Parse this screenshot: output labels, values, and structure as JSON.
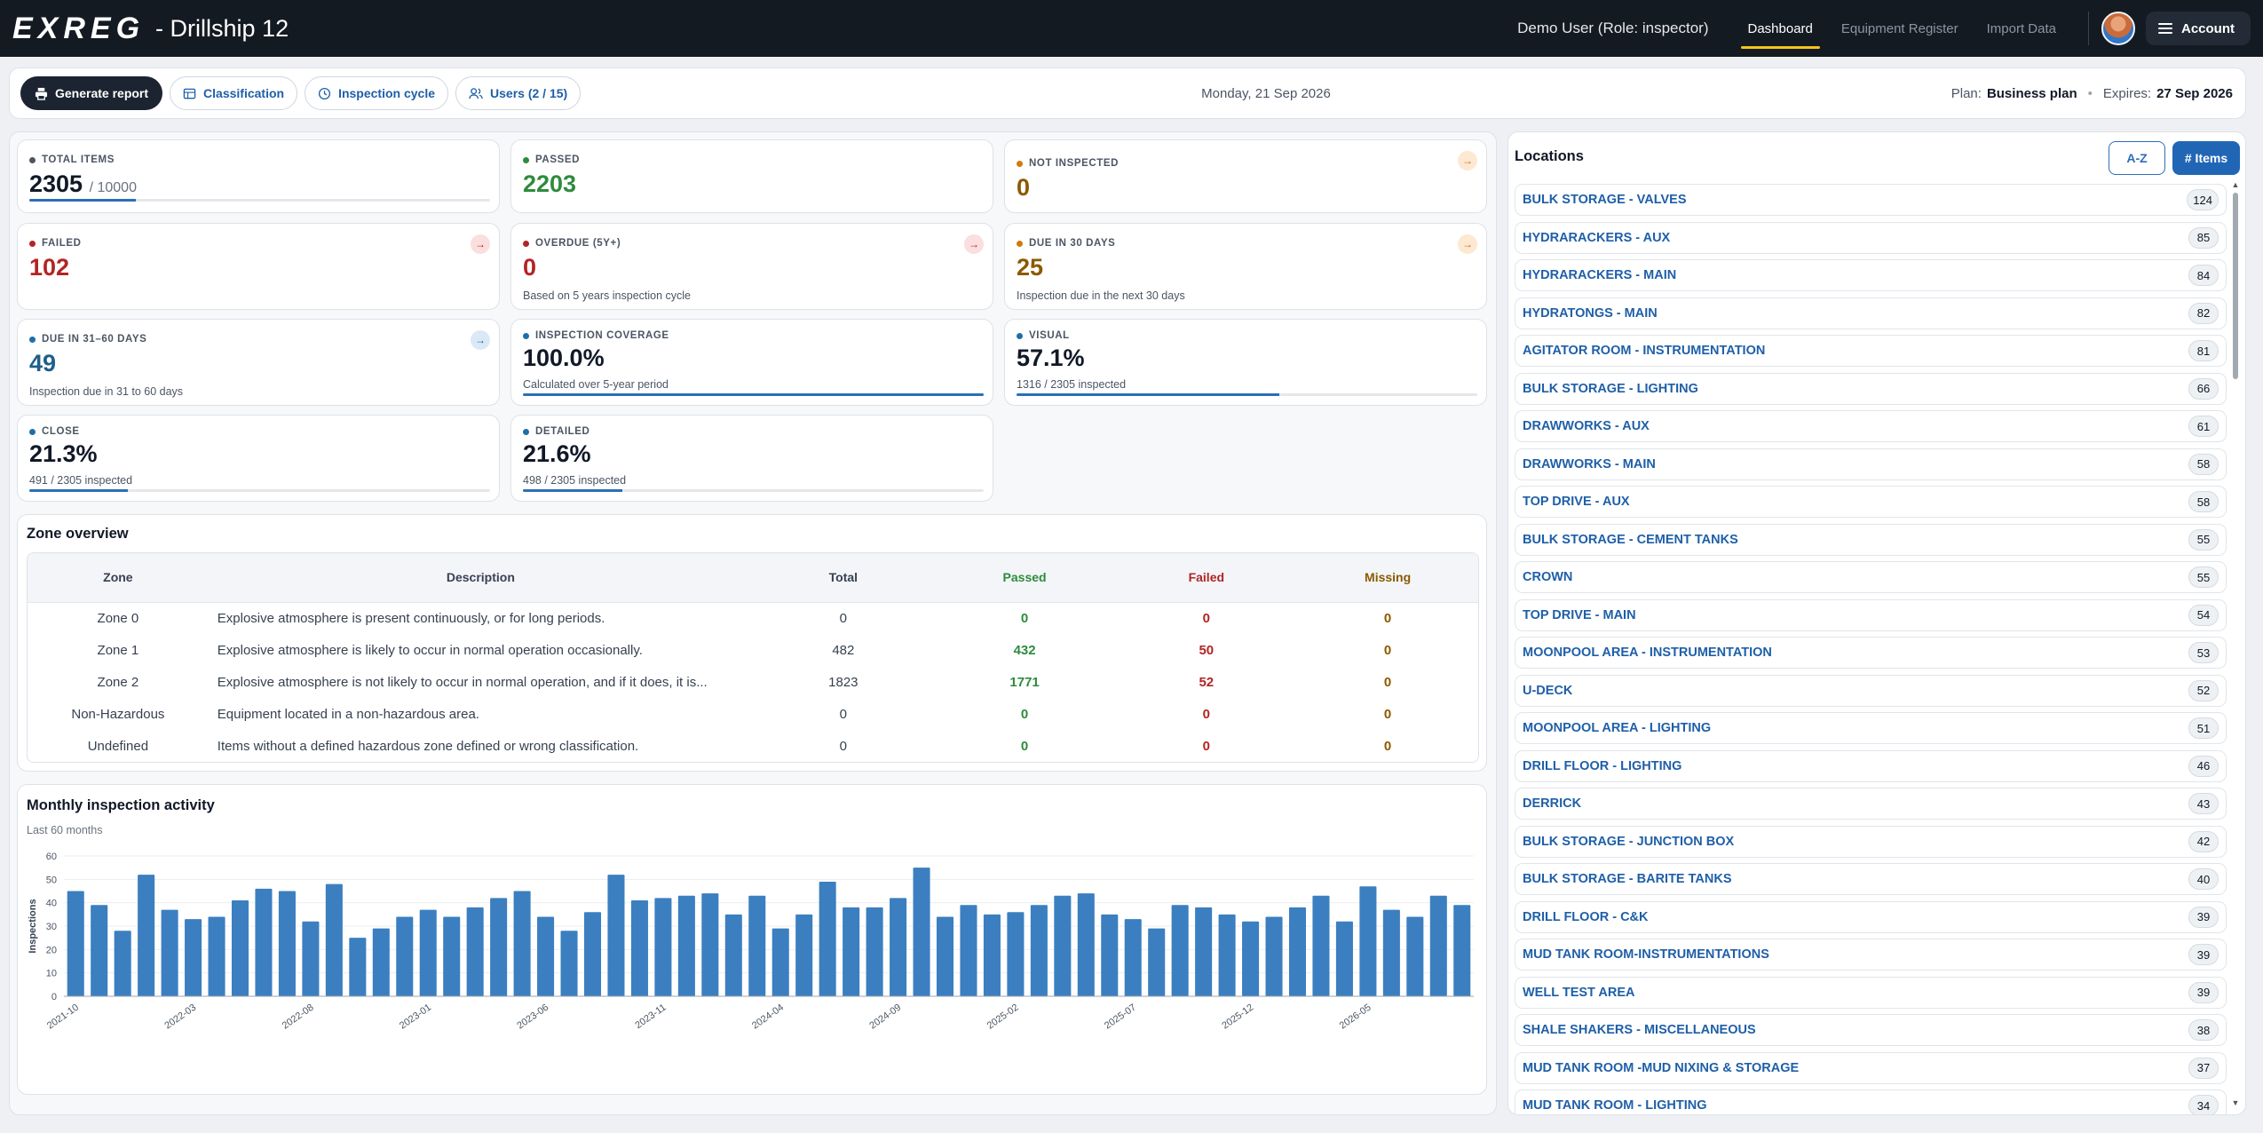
{
  "colors": {
    "pass": "#2e8b3d",
    "fail": "#b32424",
    "warn": "#8a5a00",
    "accent": "#2b6fb8",
    "neutral": "#4b5563"
  },
  "topbar": {
    "logo": "EXREG",
    "title": "- Drillship 12",
    "user": "Demo User (Role: inspector)",
    "tabs": [
      {
        "label": "Dashboard",
        "active": true
      },
      {
        "label": "Equipment Register",
        "active": false
      },
      {
        "label": "Import Data",
        "active": false
      }
    ],
    "account_label": "Account"
  },
  "toolbar": {
    "generate_report": "Generate report",
    "classification": "Classification",
    "inspection_cycle": "Inspection cycle",
    "users": "Users (2 / 15)",
    "date": "Monday, 21 Sep 2026",
    "plan_label": "Plan:",
    "plan_value": "Business plan",
    "expires_label": "Expires:",
    "expires_value": "27 Sep 2026"
  },
  "kpis": {
    "total": {
      "label": "TOTAL ITEMS",
      "value": "2305",
      "of": "/ 10000",
      "progress": 0.2305
    },
    "passed": {
      "label": "PASSED",
      "value": "2203"
    },
    "not_inspected": {
      "label": "NOT INSPECTED",
      "value": "0"
    },
    "failed": {
      "label": "FAILED",
      "value": "102"
    },
    "overdue": {
      "label": "OVERDUE (5Y+)",
      "value": "0",
      "sub": "Based on 5 years inspection cycle"
    },
    "due30": {
      "label": "DUE IN 30 DAYS",
      "value": "25",
      "sub": "Inspection due in the next 30 days"
    },
    "due60": {
      "label": "DUE IN 31–60 DAYS",
      "value": "49",
      "sub": "Inspection due in 31 to 60 days"
    },
    "coverage": {
      "label": "INSPECTION COVERAGE",
      "value": "100.0%",
      "sub": "Calculated over 5-year period",
      "progress": 1.0
    },
    "visual": {
      "label": "VISUAL",
      "value": "57.1%",
      "sub": "1316 / 2305 inspected",
      "progress": 0.571
    },
    "close": {
      "label": "CLOSE",
      "value": "21.3%",
      "sub": "491 / 2305 inspected",
      "progress": 0.213
    },
    "detailed": {
      "label": "DETAILED",
      "value": "21.6%",
      "sub": "498 / 2305 inspected",
      "progress": 0.216
    }
  },
  "zones": {
    "title": "Zone overview",
    "headers": [
      "Zone",
      "Description",
      "Total",
      "Passed",
      "Failed",
      "Missing"
    ],
    "rows": [
      [
        "Zone 0",
        "Explosive atmosphere is present continuously, or for long periods.",
        "0",
        "0",
        "0",
        "0"
      ],
      [
        "Zone 1",
        "Explosive atmosphere is likely to occur in normal operation occasionally.",
        "482",
        "432",
        "50",
        "0"
      ],
      [
        "Zone 2",
        "Explosive atmosphere is not likely to occur in normal operation, and if it does, it is...",
        "1823",
        "1771",
        "52",
        "0"
      ],
      [
        "Non-Hazardous",
        "Equipment located in a non-hazardous area.",
        "0",
        "0",
        "0",
        "0"
      ],
      [
        "Undefined",
        "Items without a defined hazardous zone defined or wrong classification.",
        "0",
        "0",
        "0",
        "0"
      ]
    ]
  },
  "activity": {
    "title": "Monthly inspection activity",
    "subtitle": "Last 60 months"
  },
  "chart_data": {
    "type": "bar",
    "ylabel": "Inspections",
    "xlabel": "",
    "ylim": [
      0,
      60
    ],
    "yticks": [
      0,
      10,
      20,
      30,
      40,
      50,
      60
    ],
    "grid": true,
    "categories": [
      "2021-10",
      "2021-11",
      "2021-12",
      "2022-01",
      "2022-02",
      "2022-03",
      "2022-04",
      "2022-05",
      "2022-06",
      "2022-07",
      "2022-08",
      "2022-09",
      "2022-10",
      "2022-11",
      "2022-12",
      "2023-01",
      "2023-02",
      "2023-03",
      "2023-04",
      "2023-05",
      "2023-06",
      "2023-07",
      "2023-08",
      "2023-09",
      "2023-10",
      "2023-11",
      "2023-12",
      "2024-01",
      "2024-02",
      "2024-03",
      "2024-04",
      "2024-05",
      "2024-06",
      "2024-07",
      "2024-08",
      "2024-09",
      "2024-10",
      "2024-11",
      "2024-12",
      "2025-01",
      "2025-02",
      "2025-03",
      "2025-04",
      "2025-05",
      "2025-06",
      "2025-07",
      "2025-08",
      "2025-09",
      "2025-10",
      "2025-11",
      "2025-12",
      "2026-01",
      "2026-02",
      "2026-03",
      "2026-04",
      "2026-05",
      "2026-06",
      "2026-07",
      "2026-08",
      "2026-09"
    ],
    "values": [
      45,
      39,
      28,
      52,
      37,
      33,
      34,
      41,
      46,
      45,
      32,
      48,
      25,
      29,
      34,
      37,
      34,
      38,
      42,
      45,
      34,
      28,
      36,
      52,
      41,
      42,
      43,
      44,
      35,
      43,
      29,
      35,
      49,
      38,
      38,
      42,
      55,
      34,
      39,
      35,
      36,
      39,
      43,
      44,
      35,
      33,
      29,
      39,
      38,
      35,
      32,
      34,
      38,
      43,
      32,
      47,
      37,
      34,
      43,
      39
    ],
    "tick_labels": [
      "2021-10",
      "2022-03",
      "2022-08",
      "2023-01",
      "2023-06",
      "2023-11",
      "2024-04",
      "2024-09",
      "2025-02",
      "2025-07",
      "2025-12",
      "2026-05"
    ],
    "color": "#3b7fc0"
  },
  "locations": {
    "title": "Locations",
    "sort_az": "A-Z",
    "sort_items": "# Items",
    "items": [
      {
        "name": "BULK STORAGE - VALVES",
        "count": "124"
      },
      {
        "name": "HYDRARACKERS - AUX",
        "count": "85"
      },
      {
        "name": "HYDRARACKERS - MAIN",
        "count": "84"
      },
      {
        "name": "HYDRATONGS - MAIN",
        "count": "82"
      },
      {
        "name": "AGITATOR ROOM - INSTRUMENTATION",
        "count": "81"
      },
      {
        "name": "BULK STORAGE - LIGHTING",
        "count": "66"
      },
      {
        "name": "DRAWWORKS - AUX",
        "count": "61"
      },
      {
        "name": "DRAWWORKS - MAIN",
        "count": "58"
      },
      {
        "name": "TOP DRIVE - AUX",
        "count": "58"
      },
      {
        "name": "BULK STORAGE - CEMENT TANKS",
        "count": "55"
      },
      {
        "name": "CROWN",
        "count": "55"
      },
      {
        "name": "TOP DRIVE - MAIN",
        "count": "54"
      },
      {
        "name": "MOONPOOL AREA - INSTRUMENTATION",
        "count": "53"
      },
      {
        "name": "U-DECK",
        "count": "52"
      },
      {
        "name": "MOONPOOL AREA - LIGHTING",
        "count": "51"
      },
      {
        "name": "DRILL FLOOR - LIGHTING",
        "count": "46"
      },
      {
        "name": "DERRICK",
        "count": "43"
      },
      {
        "name": "BULK STORAGE - JUNCTION BOX",
        "count": "42"
      },
      {
        "name": "BULK STORAGE - BARITE TANKS",
        "count": "40"
      },
      {
        "name": "DRILL FLOOR - C&K",
        "count": "39"
      },
      {
        "name": "MUD TANK ROOM-INSTRUMENTATIONS",
        "count": "39"
      },
      {
        "name": "WELL TEST AREA",
        "count": "39"
      },
      {
        "name": "SHALE SHAKERS - MISCELLANEOUS",
        "count": "38"
      },
      {
        "name": "MUD TANK ROOM -MUD NIXING & STORAGE",
        "count": "37"
      },
      {
        "name": "MUD TANK ROOM - LIGHTING",
        "count": "34"
      }
    ]
  }
}
